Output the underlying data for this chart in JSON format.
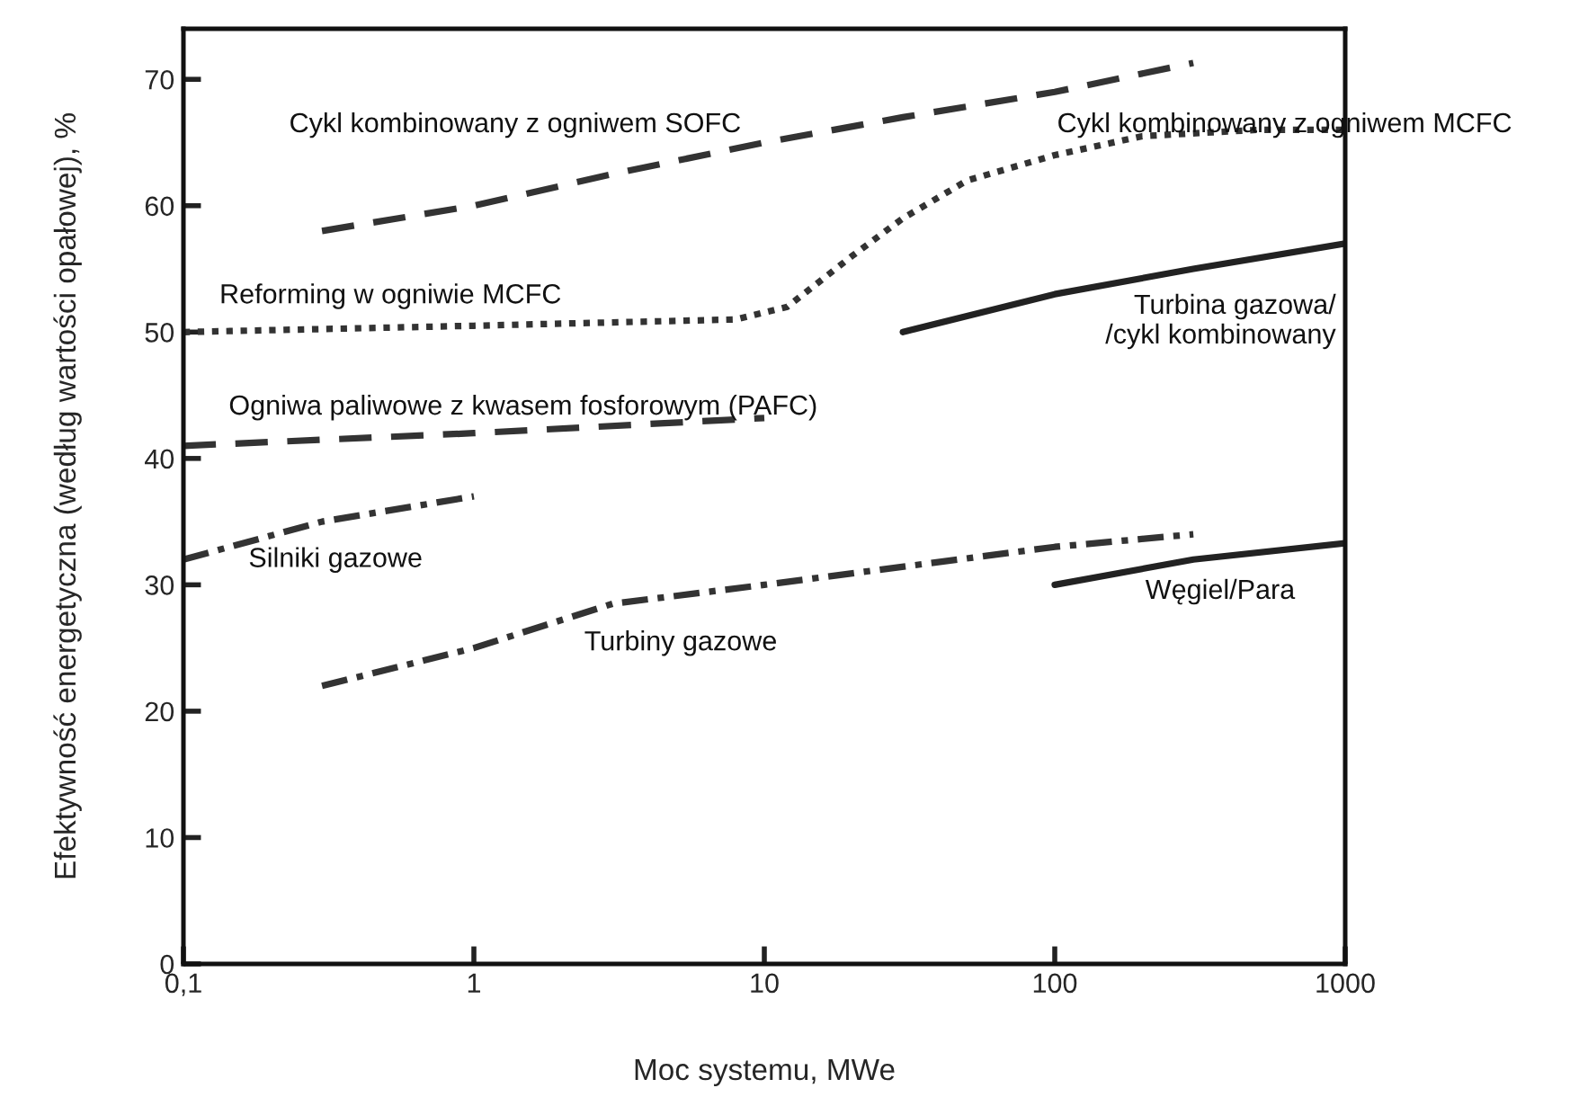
{
  "chart_data": {
    "type": "line",
    "xlabel": "Moc systemu, MWe",
    "ylabel": "Efektywność energetyczna (według wartości opałowej), %",
    "log": "x",
    "xlim": [
      0.1,
      1000
    ],
    "xticks": [
      {
        "value": 0.1,
        "label": "0,1"
      },
      1,
      10,
      100,
      1000
    ],
    "ylim": [
      0,
      74
    ],
    "yticks": [
      0,
      10,
      20,
      30,
      40,
      50,
      60,
      70
    ],
    "grid": false,
    "legend": false,
    "series": [
      {
        "name": "Cykl kombinowany z ogniwem SOFC",
        "color": "#333333",
        "line_style": "dashed",
        "x": [
          0.3,
          1,
          3,
          10,
          30,
          100,
          300
        ],
        "values": [
          58,
          60,
          62.5,
          65,
          67,
          69,
          71.3
        ]
      },
      {
        "name": "Cykl kombinowany z ogniwem MCFC",
        "color": "#333333",
        "line_style": "dotted",
        "x": [
          0.1,
          1,
          8,
          12,
          20,
          30,
          50,
          100,
          200,
          500,
          1000
        ],
        "values": [
          50,
          50.5,
          51,
          52,
          56,
          59,
          62,
          64,
          65.5,
          66,
          66
        ]
      },
      {
        "name": "Turbina gazowa/\n/cykl kombinowany",
        "color": "#222222",
        "line_style": "solid",
        "x": [
          30,
          100,
          300,
          1000
        ],
        "values": [
          50,
          53,
          55,
          57
        ]
      },
      {
        "name": "Ogniwa paliwowe z kwasem fosforowym (PAFC)",
        "color": "#333333",
        "line_style": "dashed",
        "x": [
          0.1,
          1,
          10
        ],
        "values": [
          41,
          42,
          43.2
        ]
      },
      {
        "name": "Silniki gazowe",
        "color": "#333333",
        "line_style": "dashdot",
        "x": [
          0.1,
          0.3,
          1
        ],
        "values": [
          32,
          35,
          37
        ]
      },
      {
        "name": "Turbiny gazowe",
        "color": "#333333",
        "line_style": "dashdot",
        "x": [
          0.3,
          1,
          3,
          10,
          100,
          300
        ],
        "values": [
          22,
          25,
          28.5,
          30,
          33,
          34
        ]
      },
      {
        "name": "Węgiel/Para",
        "color": "#222222",
        "line_style": "solid",
        "x": [
          100,
          300,
          1000
        ],
        "values": [
          30,
          32,
          33.3
        ]
      }
    ],
    "annotations": [
      "Reforming w ogniwie MCFC"
    ]
  }
}
